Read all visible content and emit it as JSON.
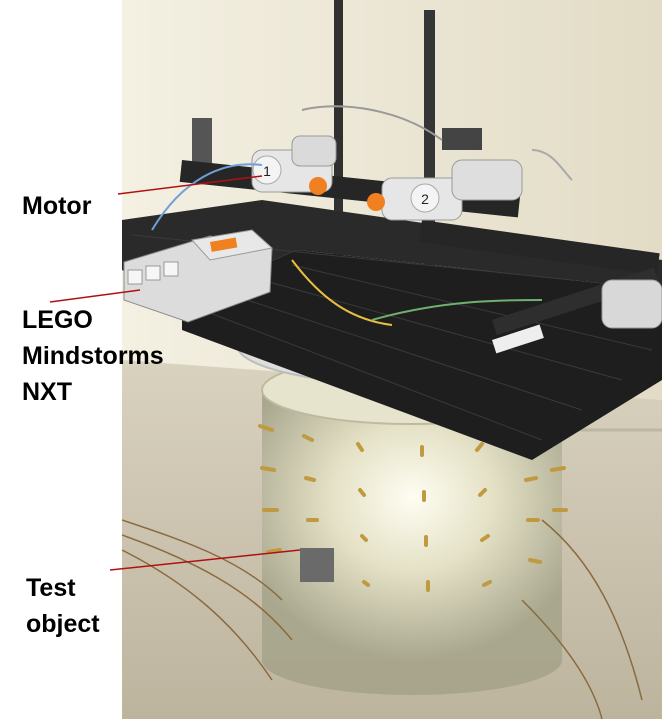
{
  "labels": {
    "motor": "Motor",
    "nxt_line1": "LEGO",
    "nxt_line2": "Mindstorms",
    "nxt_line3": "NXT",
    "test_line1": "Test",
    "test_line2": "object"
  },
  "motor_numbers": {
    "left": "1",
    "right": "2"
  },
  "colors": {
    "callout_line": "#b01010",
    "wall": "#ece6d2",
    "floor": "#cfc6b0",
    "platform": "#222222",
    "tank": "#d8d6bd",
    "electrodes": "#c8a24a",
    "nxt_brick": "#dcdcdc",
    "motor_body": "#e6e6e6",
    "motor_hub": "#f08020"
  },
  "icons": [
    "lego-platform",
    "lego-motor-icon",
    "nxt-brick-icon",
    "electrode-tank-icon"
  ]
}
